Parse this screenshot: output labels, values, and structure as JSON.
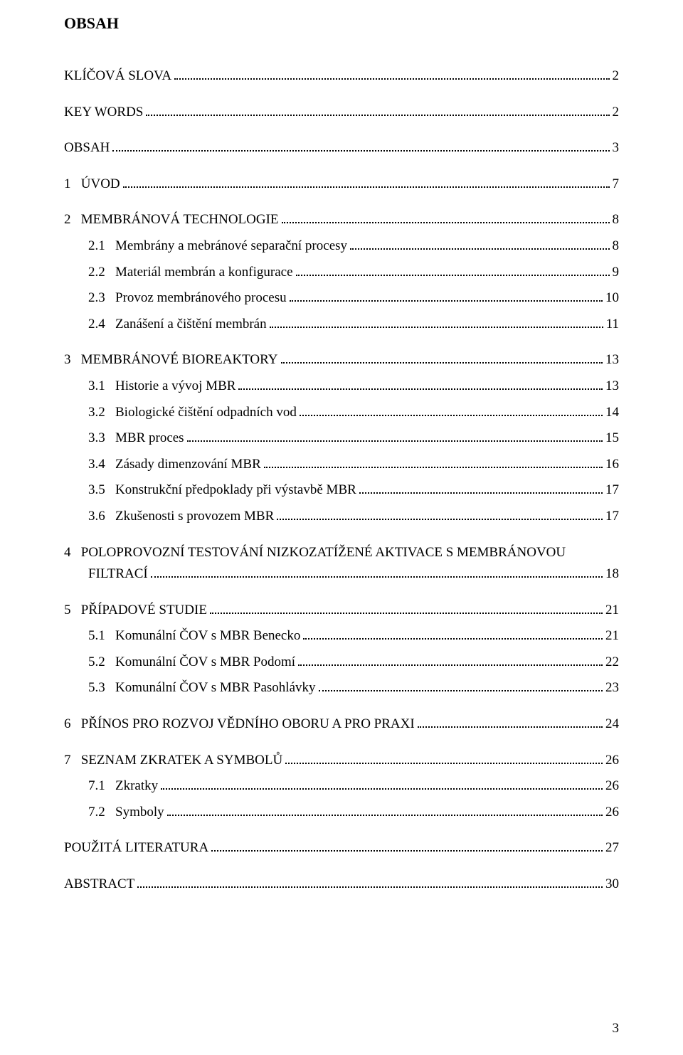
{
  "title": "OBSAH",
  "pageNumber": "3",
  "entries": [
    {
      "type": "row",
      "indent": 0,
      "num": "",
      "label": "KLÍČOVÁ SLOVA",
      "page": "2"
    },
    {
      "type": "gap"
    },
    {
      "type": "row",
      "indent": 0,
      "num": "",
      "label": "KEY WORDS",
      "page": "2"
    },
    {
      "type": "gap"
    },
    {
      "type": "row",
      "indent": 0,
      "num": "",
      "label": "OBSAH",
      "page": "3"
    },
    {
      "type": "gap"
    },
    {
      "type": "row",
      "indent": 0,
      "num": "1",
      "label": "ÚVOD",
      "page": "7"
    },
    {
      "type": "gap"
    },
    {
      "type": "row",
      "indent": 0,
      "num": "2",
      "label": "MEMBRÁNOVÁ TECHNOLOGIE",
      "page": "8"
    },
    {
      "type": "row",
      "indent": 1,
      "num": "2.1",
      "label": "Membrány a mebránové separační procesy",
      "page": "8"
    },
    {
      "type": "row",
      "indent": 1,
      "num": "2.2",
      "label": "Materiál membrán a konfigurace",
      "page": "9"
    },
    {
      "type": "row",
      "indent": 1,
      "num": "2.3",
      "label": "Provoz membránového procesu",
      "page": "10"
    },
    {
      "type": "row",
      "indent": 1,
      "num": "2.4",
      "label": "Zanášení a čištění membrán",
      "page": "11"
    },
    {
      "type": "gap"
    },
    {
      "type": "row",
      "indent": 0,
      "num": "3",
      "label": "MEMBRÁNOVÉ BIOREAKTORY",
      "page": "13"
    },
    {
      "type": "row",
      "indent": 1,
      "num": "3.1",
      "label": "Historie a vývoj MBR",
      "page": "13"
    },
    {
      "type": "row",
      "indent": 1,
      "num": "3.2",
      "label": "Biologické čištění odpadních vod",
      "page": "14"
    },
    {
      "type": "row",
      "indent": 1,
      "num": "3.3",
      "label": "MBR proces",
      "page": "15"
    },
    {
      "type": "row",
      "indent": 1,
      "num": "3.4",
      "label": "Zásady dimenzování MBR",
      "page": "16"
    },
    {
      "type": "row",
      "indent": 1,
      "num": "3.5",
      "label": "Konstrukční předpoklady při výstavbě MBR",
      "page": "17"
    },
    {
      "type": "row",
      "indent": 1,
      "num": "3.6",
      "label": "Zkušenosti s provozem MBR",
      "page": "17"
    },
    {
      "type": "gap"
    },
    {
      "type": "wrap",
      "indent": 0,
      "num": "4",
      "labelLine1": "POLOPROVOZNÍ TESTOVÁNÍ NIZKOZATÍŽENÉ AKTIVACE S MEMBRÁNOVOU",
      "labelLine2": "FILTRACÍ",
      "page": "18"
    },
    {
      "type": "gap"
    },
    {
      "type": "row",
      "indent": 0,
      "num": "5",
      "label": "PŘÍPADOVÉ STUDIE",
      "page": "21"
    },
    {
      "type": "row",
      "indent": 1,
      "num": "5.1",
      "label": "Komunální ČOV s MBR Benecko",
      "page": "21"
    },
    {
      "type": "row",
      "indent": 1,
      "num": "5.2",
      "label": "Komunální ČOV s MBR Podomí",
      "page": "22"
    },
    {
      "type": "row",
      "indent": 1,
      "num": "5.3",
      "label": "Komunální ČOV s MBR Pasohlávky",
      "page": "23"
    },
    {
      "type": "gap"
    },
    {
      "type": "row",
      "indent": 0,
      "num": "6",
      "label": "PŘÍNOS PRO ROZVOJ VĚDNÍHO OBORU A PRO PRAXI",
      "page": "24"
    },
    {
      "type": "gap"
    },
    {
      "type": "row",
      "indent": 0,
      "num": "7",
      "label": "SEZNAM ZKRATEK A SYMBOLŮ",
      "page": "26"
    },
    {
      "type": "row",
      "indent": 1,
      "num": "7.1",
      "label": "Zkratky",
      "page": "26"
    },
    {
      "type": "row",
      "indent": 1,
      "num": "7.2",
      "label": "Symboly",
      "page": "26"
    },
    {
      "type": "gap"
    },
    {
      "type": "row",
      "indent": 0,
      "num": "",
      "label": "POUŽITÁ LITERATURA",
      "page": "27"
    },
    {
      "type": "gap"
    },
    {
      "type": "row",
      "indent": 0,
      "num": "",
      "label": "ABSTRACT",
      "page": "30"
    }
  ]
}
